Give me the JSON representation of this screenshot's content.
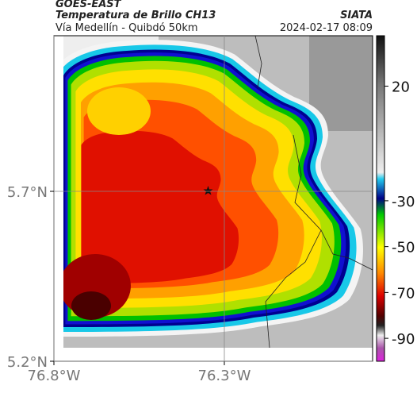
{
  "header": {
    "source": "GOES-EAST",
    "title": "Temperatura de Brillo CH13",
    "subtitle": "Vía Medellín - Quibdó 50km",
    "agency": "SIATA",
    "datetime": "2024-02-17 08:09"
  },
  "map": {
    "xlim": [
      -76.8,
      -75.865
    ],
    "ylim": [
      5.2,
      6.158
    ],
    "xticks": [
      {
        "value": -76.8,
        "label": "76.8°W"
      },
      {
        "value": -76.3,
        "label": "76.3°W"
      }
    ],
    "yticks": [
      {
        "value": 5.2,
        "label": "5.2°N"
      },
      {
        "value": 5.7,
        "label": "5.7°N"
      }
    ],
    "grid": true
  },
  "colorbar": {
    "lim": [
      42,
      -100
    ],
    "ticks": [
      20,
      -30,
      -50,
      -70,
      -90
    ]
  }
}
